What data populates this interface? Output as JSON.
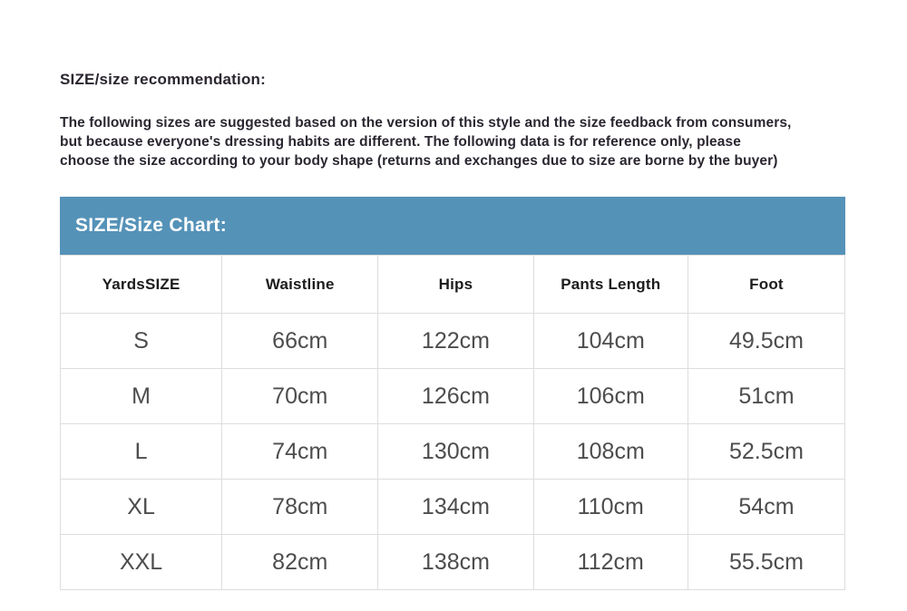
{
  "page": {
    "heading": "SIZE/size recommendation:",
    "intro_lines": [
      "The following sizes are suggested based on the version of this style and the size feedback from consumers,",
      "but because everyone's dressing habits are different. The following data is for reference only, please",
      "choose the size according to your body shape (returns and exchanges due to size are borne by the buyer)"
    ]
  },
  "size_chart": {
    "title": "SIZE/Size Chart:",
    "columns": [
      "YardsSIZE",
      "Waistline",
      "Hips",
      "Pants Length",
      "Foot"
    ],
    "rows": [
      {
        "size": "S",
        "waistline": "66cm",
        "hips": "122cm",
        "pants_length": "104cm",
        "foot": "49.5cm"
      },
      {
        "size": "M",
        "waistline": "70cm",
        "hips": "126cm",
        "pants_length": "106cm",
        "foot": "51cm"
      },
      {
        "size": "L",
        "waistline": "74cm",
        "hips": "130cm",
        "pants_length": "108cm",
        "foot": "52.5cm"
      },
      {
        "size": "XL",
        "waistline": "78cm",
        "hips": "134cm",
        "pants_length": "110cm",
        "foot": "54cm"
      },
      {
        "size": "XXL",
        "waistline": "82cm",
        "hips": "138cm",
        "pants_length": "112cm",
        "foot": "55.5cm"
      }
    ]
  },
  "colors": {
    "chart_header_bg": "#5592b8",
    "chart_header_text": "#ffffff",
    "body_text": "#2b2630",
    "table_header_text": "#1c1c1c",
    "table_data_text": "#4d4d4d",
    "table_border": "#dddddd",
    "page_bg": "#ffffff"
  }
}
